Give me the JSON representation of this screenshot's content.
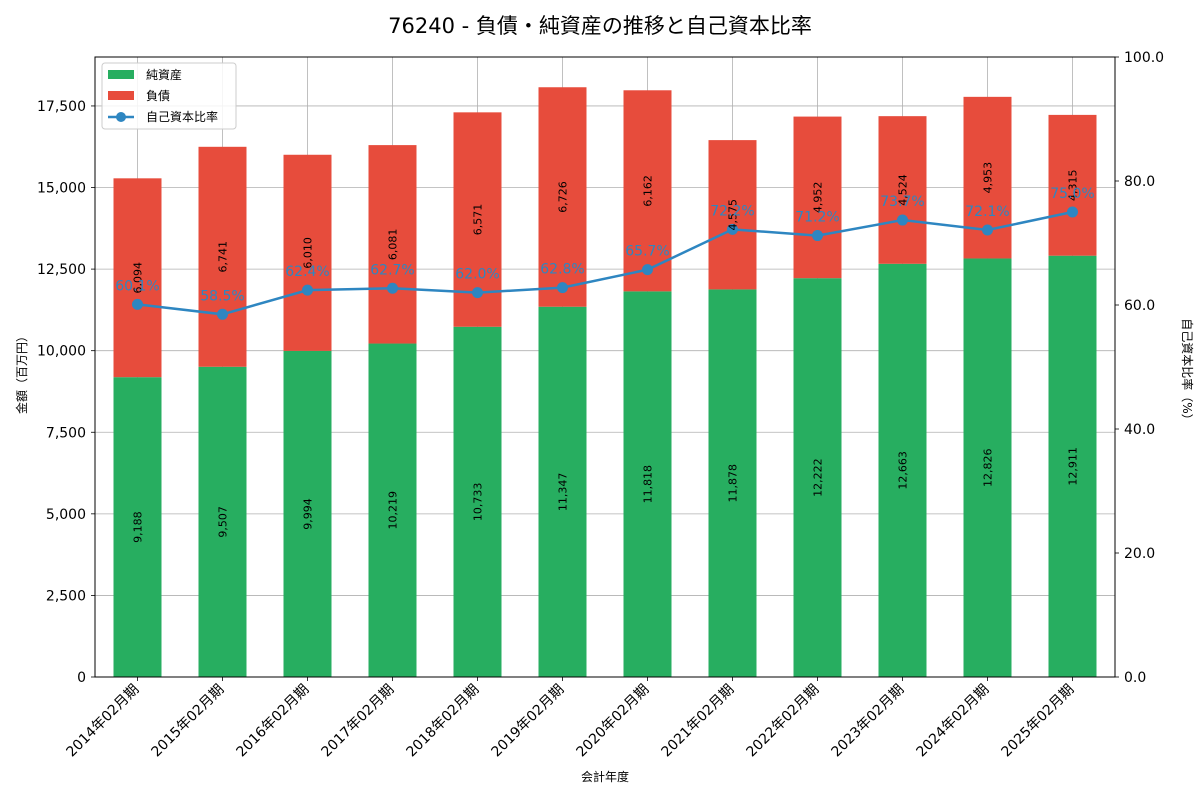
{
  "chart_data": {
    "type": "bar",
    "title": "76240 - 負債・純資産の推移と自己資本比率",
    "xlabel": "会計年度",
    "ylabel_left": "金額（百万円）",
    "ylabel_right": "自己資本比率（%）",
    "ylim_left": [
      0,
      19000
    ],
    "ylim_right": [
      0,
      100
    ],
    "yticks_left": [
      "0",
      "2,500",
      "5,000",
      "7,500",
      "10,000",
      "12,500",
      "15,000",
      "17,500"
    ],
    "yticks_right": [
      "0.0",
      "20.0",
      "40.0",
      "60.0",
      "80.0",
      "100.0"
    ],
    "grid": true,
    "legend_position": "top-left",
    "categories": [
      "2014年02月期",
      "2015年02月期",
      "2016年02月期",
      "2017年02月期",
      "2018年02月期",
      "2019年02月期",
      "2020年02月期",
      "2021年02月期",
      "2022年02月期",
      "2023年02月期",
      "2024年02月期",
      "2025年02月期"
    ],
    "series": [
      {
        "name": "純資産",
        "kind": "stacked-bar",
        "color": "#27ae60",
        "values": [
          9188,
          9507,
          9994,
          10219,
          10733,
          11347,
          11818,
          11878,
          12222,
          12663,
          12826,
          12911
        ],
        "labels": [
          "9,188",
          "9,507",
          "9,994",
          "10,219",
          "10,733",
          "11,347",
          "11,818",
          "11,878",
          "12,222",
          "12,663",
          "12,826",
          "12,911"
        ]
      },
      {
        "name": "負債",
        "kind": "stacked-bar",
        "color": "#e74c3c",
        "values": [
          6094,
          6741,
          6010,
          6081,
          6571,
          6726,
          6162,
          4575,
          4952,
          4524,
          4953,
          4315
        ],
        "labels": [
          "6,094",
          "6,741",
          "6,010",
          "6,081",
          "6,571",
          "6,726",
          "6,162",
          "4,575",
          "4,952",
          "4,524",
          "4,953",
          "4,315"
        ]
      },
      {
        "name": "自己資本比率",
        "kind": "line",
        "axis": "right",
        "color": "#2e86c1",
        "values": [
          60.1,
          58.5,
          62.4,
          62.7,
          62.0,
          62.8,
          65.7,
          72.2,
          71.2,
          73.7,
          72.1,
          75.0
        ],
        "labels": [
          "60.1%",
          "58.5%",
          "62.4%",
          "62.7%",
          "62.0%",
          "62.8%",
          "65.7%",
          "72.2%",
          "71.2%",
          "73.7%",
          "72.1%",
          "75.0%"
        ]
      }
    ]
  }
}
